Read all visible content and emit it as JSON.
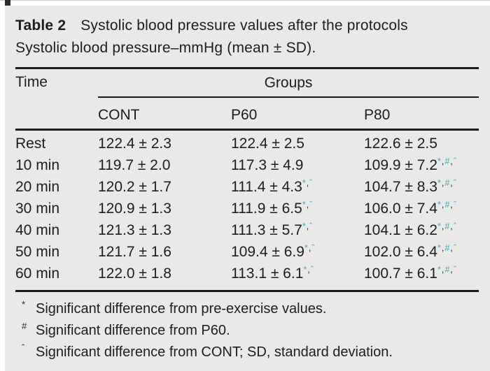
{
  "table": {
    "label": "Table 2",
    "title": "Systolic blood pressure values after the protocols",
    "subtitle": "Systolic blood pressure–mmHg (mean ± SD).",
    "time_header": "Time",
    "col_group_header": "Groups",
    "columns": [
      "CONT",
      "P60",
      "P80"
    ],
    "rows": [
      {
        "time": "Rest",
        "cont": "122.4 ± 2.3",
        "p60": "122.4 ± 2.5",
        "p60_marks": [],
        "p80": "122.6 ± 2.5",
        "p80_marks": []
      },
      {
        "time": "10 min",
        "cont": "119.7 ± 2.0",
        "p60": "117.3 ± 4.9",
        "p60_marks": [],
        "p80": "109.9 ± 7.2",
        "p80_marks": [
          "*",
          "#",
          "ˆ"
        ]
      },
      {
        "time": "20 min",
        "cont": "120.2 ± 1.7",
        "p60": "111.4 ± 4.3",
        "p60_marks": [
          "*",
          "ˆ"
        ],
        "p80": "104.7 ± 8.3",
        "p80_marks": [
          "*",
          "#",
          "ˆ"
        ]
      },
      {
        "time": "30 min",
        "cont": "120.9 ± 1.3",
        "p60": "111.9 ± 6.5",
        "p60_marks": [
          "*",
          "ˆ"
        ],
        "p80": "106.0 ± 7.4",
        "p80_marks": [
          "*",
          "#",
          "ˆ"
        ]
      },
      {
        "time": "40 min",
        "cont": "121.3 ± 1.3",
        "p60": "111.3 ± 5.7",
        "p60_marks": [
          "*",
          "ˆ"
        ],
        "p80": "104.1 ± 6.2",
        "p80_marks": [
          "*",
          "#",
          "ˆ"
        ]
      },
      {
        "time": "50 min",
        "cont": "121.7 ± 1.6",
        "p60": "109.4 ± 6.9",
        "p60_marks": [
          "*",
          "ˆ"
        ],
        "p80": "102.0 ± 6.4",
        "p80_marks": [
          "*",
          "#",
          "ˆ"
        ]
      },
      {
        "time": "60 min",
        "cont": "122.0 ± 1.8",
        "p60": "113.1 ± 6.1",
        "p60_marks": [
          "*",
          "ˆ"
        ],
        "p80": "100.7 ± 6.1",
        "p80_marks": [
          "*",
          "#",
          "ˆ"
        ]
      }
    ],
    "footnotes": [
      {
        "marker": "*",
        "text": "Significant difference from pre-exercise values."
      },
      {
        "marker": "#",
        "text": "Significant difference from P60."
      },
      {
        "marker": "ˆ",
        "text": "Significant difference from CONT; SD, standard deviation."
      }
    ],
    "colors": {
      "background": "#e9e9e8",
      "text": "#1d1d1b",
      "marker_accent": "#44a5ba",
      "rule": "#1a1a1a"
    }
  }
}
